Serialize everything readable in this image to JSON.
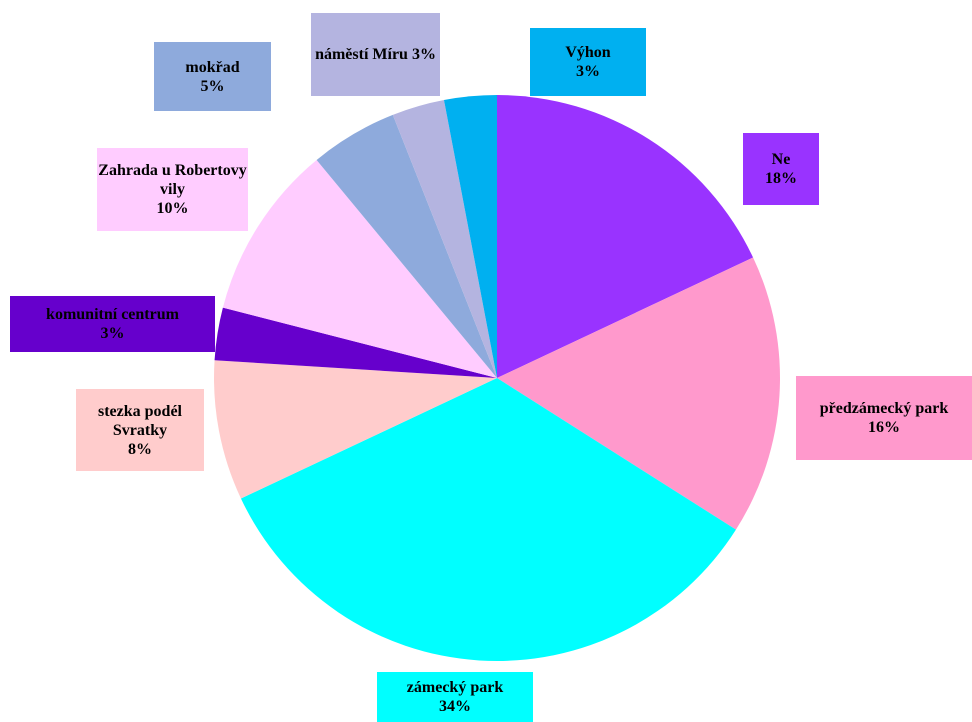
{
  "chart_data": {
    "type": "pie",
    "categories": [
      "Ne",
      "předzámecký park",
      "zámecký park",
      "stezka podél Svratky",
      "komunitní centrum",
      "Zahrada u Robertovy vily",
      "mokřad",
      "náměstí Míru",
      "Výhon"
    ],
    "values": [
      18,
      16,
      34,
      8,
      3,
      10,
      5,
      3,
      3
    ],
    "value_labels": [
      "18%",
      "16%",
      "34%",
      "8%",
      "3%",
      "10%",
      "5%",
      "3%",
      "3%"
    ],
    "colors": [
      "#9933ff",
      "#ff99cc",
      "#00ffff",
      "#ffcccc",
      "#6600cc",
      "#ffccff",
      "#8eaadc",
      "#b4b4e0",
      "#00b0f0"
    ]
  }
}
